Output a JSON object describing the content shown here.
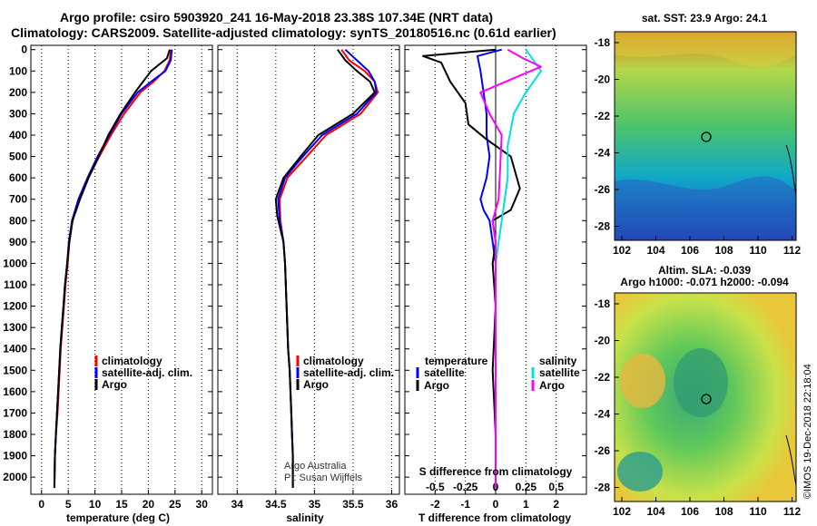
{
  "header": {
    "title_line1": "Argo profile: csiro 5903920_241 16-May-2018 23.38S 107.34E (NRT data)",
    "title_line2": "Climatology: CARS2009. Satellite-adjusted climatology: synTS_20180516.nc (0.61d earlier)"
  },
  "colors": {
    "climatology": "#ff0000",
    "satellite": "#0000ff",
    "argo": "#000000",
    "sat_salinity": "#00e0e0",
    "argo_salinity": "#ff00ff"
  },
  "chart_data": [
    {
      "type": "line",
      "id": "temperature",
      "xlabel": "temperature (deg C)",
      "xlim": [
        -2,
        32
      ],
      "ylim": [
        2080,
        -20
      ],
      "xticks": [
        0,
        5,
        10,
        15,
        20,
        25,
        30
      ],
      "xtick_labels": [
        "0",
        "5",
        "10",
        "15",
        "20",
        "25",
        "30"
      ],
      "yticks": [
        0,
        100,
        200,
        300,
        400,
        500,
        600,
        700,
        800,
        900,
        1000,
        1100,
        1200,
        1300,
        1400,
        1500,
        1600,
        1700,
        1800,
        1900,
        2000
      ],
      "ytick_labels": [
        "0",
        "100",
        "200",
        "300",
        "400",
        "500",
        "600",
        "700",
        "800",
        "900",
        "1000",
        "1100",
        "1200",
        "1300",
        "1400",
        "1500",
        "1600",
        "1700",
        "1800",
        "1900",
        "2000"
      ],
      "legend": [
        "climatology",
        "satellite-adj. clim.",
        "Argo"
      ],
      "series": [
        {
          "name": "climatology",
          "color": "#ff0000",
          "x": [
            24.2,
            24.0,
            23.0,
            21.0,
            18.5,
            15.5,
            13.0,
            10.8,
            8.8,
            7.0,
            5.8,
            5.2,
            4.9,
            4.5,
            4.2,
            3.9,
            3.6,
            3.4,
            3.2,
            3.0,
            2.7,
            2.5,
            2.4
          ],
          "depth": [
            0,
            50,
            100,
            150,
            200,
            300,
            400,
            500,
            600,
            700,
            800,
            900,
            1000,
            1100,
            1200,
            1300,
            1400,
            1500,
            1600,
            1700,
            1800,
            1900,
            2050
          ]
        },
        {
          "name": "satellite-adj. clim.",
          "color": "#0000ff",
          "x": [
            24.4,
            24.2,
            23.2,
            20.5,
            18.0,
            15.0,
            12.7,
            10.5,
            8.6,
            6.9,
            5.7,
            5.1,
            4.8,
            4.4,
            4.1,
            3.8,
            3.5,
            3.3,
            3.1,
            2.9,
            2.7,
            2.5,
            2.4
          ],
          "depth": [
            0,
            50,
            100,
            150,
            200,
            300,
            400,
            500,
            600,
            700,
            800,
            900,
            1000,
            1100,
            1200,
            1300,
            1400,
            1500,
            1600,
            1700,
            1800,
            1900,
            2050
          ]
        },
        {
          "name": "Argo",
          "color": "#000000",
          "x": [
            24.0,
            23.5,
            20.5,
            19.0,
            17.5,
            14.8,
            12.5,
            10.7,
            8.8,
            7.2,
            5.8,
            5.2,
            4.8,
            4.4,
            4.1,
            3.8,
            3.5,
            3.3,
            3.1,
            2.9,
            2.7,
            2.5,
            2.4
          ],
          "depth": [
            0,
            40,
            100,
            150,
            200,
            300,
            400,
            500,
            600,
            700,
            800,
            900,
            1000,
            1100,
            1200,
            1300,
            1400,
            1500,
            1600,
            1700,
            1800,
            1900,
            2050
          ]
        }
      ]
    },
    {
      "type": "line",
      "id": "salinity",
      "xlabel": "salinity",
      "xlim": [
        33.75,
        36.1
      ],
      "ylim": [
        2080,
        -20
      ],
      "xticks": [
        34,
        34.5,
        35,
        35.5,
        36
      ],
      "xtick_labels": [
        "34",
        "34.5",
        "35",
        "35.5",
        "36"
      ],
      "legend": [
        "climatology",
        "satellite-adj. clim.",
        "Argo"
      ],
      "annotation": [
        "Argo Australia",
        "PI: Susan Wijffels"
      ],
      "series": [
        {
          "name": "climatology",
          "color": "#ff0000",
          "x": [
            35.35,
            35.45,
            35.65,
            35.78,
            35.82,
            35.6,
            35.15,
            34.9,
            34.65,
            34.55,
            34.56,
            34.6,
            34.62,
            34.64,
            34.66,
            34.68,
            34.69,
            34.7,
            34.71,
            34.72,
            34.72
          ],
          "depth": [
            0,
            50,
            100,
            150,
            200,
            300,
            400,
            500,
            600,
            700,
            800,
            900,
            1000,
            1200,
            1400,
            1500,
            1600,
            1700,
            1800,
            1900,
            2050
          ]
        },
        {
          "name": "satellite-adj. clim.",
          "color": "#0000ff",
          "x": [
            35.4,
            35.55,
            35.7,
            35.78,
            35.8,
            35.55,
            35.1,
            34.85,
            34.62,
            34.53,
            34.55,
            34.6,
            34.62,
            34.64,
            34.66,
            34.68,
            34.69,
            34.7,
            34.71,
            34.72,
            34.72
          ],
          "depth": [
            0,
            50,
            100,
            150,
            200,
            300,
            400,
            500,
            600,
            700,
            800,
            900,
            1000,
            1200,
            1400,
            1500,
            1600,
            1700,
            1800,
            1900,
            2050
          ]
        },
        {
          "name": "Argo",
          "color": "#000000",
          "x": [
            35.3,
            35.4,
            35.55,
            35.72,
            35.78,
            35.5,
            35.05,
            34.82,
            34.6,
            34.5,
            34.52,
            34.6,
            34.62,
            34.64,
            34.66,
            34.68,
            34.69,
            34.7,
            34.71,
            34.72,
            34.72
          ],
          "depth": [
            0,
            50,
            100,
            150,
            200,
            300,
            400,
            500,
            600,
            700,
            780,
            900,
            1000,
            1200,
            1400,
            1500,
            1600,
            1700,
            1800,
            1900,
            2050
          ]
        }
      ]
    },
    {
      "type": "line",
      "id": "difference",
      "xlabel": "T difference from climatology",
      "xlabel_top": "S difference from climatology",
      "xlim": [
        -3,
        3
      ],
      "ylim": [
        2080,
        -20
      ],
      "xticks": [
        -2,
        -1,
        0,
        1,
        2
      ],
      "xtick_labels": [
        "-2",
        "-1",
        "0",
        "1",
        "2"
      ],
      "s_tick_labels": [
        "-0.5",
        "-0.25",
        "0",
        "0.25",
        "0.5"
      ],
      "legend_left_title": "temperature",
      "legend_right_title": "salinity",
      "legend_left": [
        "satellite",
        "Argo"
      ],
      "legend_right": [
        "satellite",
        "Argo"
      ],
      "series": [
        {
          "name": "T satellite",
          "color": "#0000ff",
          "x": [
            0.2,
            -0.6,
            -0.5,
            -0.4,
            -0.3,
            -0.3,
            -0.2,
            -0.3,
            -0.5,
            -0.4,
            -0.2,
            -0.1,
            0.0,
            0.0,
            0.0,
            0.0,
            0.0
          ],
          "depth": [
            0,
            30,
            100,
            200,
            300,
            400,
            500,
            600,
            700,
            750,
            800,
            900,
            1000,
            1200,
            1500,
            1800,
            2050
          ]
        },
        {
          "name": "T Argo",
          "color": "#000000",
          "x": [
            0.0,
            -2.4,
            -1.8,
            -1.5,
            -1.0,
            -0.9,
            -0.3,
            0.5,
            0.8,
            0.5,
            -0.1,
            0.0,
            -0.1,
            0.0,
            -0.1,
            0.0,
            0.0
          ],
          "depth": [
            0,
            30,
            60,
            150,
            250,
            350,
            420,
            500,
            650,
            750,
            800,
            900,
            1000,
            1200,
            1500,
            1800,
            2050
          ]
        },
        {
          "name": "S satellite",
          "color": "#00e0e0",
          "x": [
            1.0,
            1.2,
            1.5,
            1.0,
            0.6,
            0.4,
            0.4,
            0.3,
            0.2,
            0.1,
            0.0,
            0.0,
            0.0,
            0.0
          ],
          "depth": [
            0,
            40,
            100,
            200,
            300,
            450,
            600,
            700,
            800,
            900,
            1000,
            1200,
            1600,
            2050
          ]
        },
        {
          "name": "S Argo",
          "color": "#ff00ff",
          "x": [
            0.4,
            0.9,
            1.5,
            1.0,
            -0.5,
            -0.2,
            0.2,
            0.1,
            -0.1,
            0.0,
            0.0,
            0.0
          ],
          "depth": [
            0,
            40,
            80,
            110,
            200,
            300,
            400,
            700,
            800,
            900,
            1200,
            2050
          ]
        }
      ]
    }
  ],
  "maps": {
    "sst": {
      "title": "sat. SST: 23.9 Argo: 24.1"
    },
    "sla": {
      "title_line1": "Altim. SLA: -0.039",
      "title_line2": "Argo h1000: -0.071 h2000: -0.094"
    },
    "xtick_labels": [
      "102",
      "104",
      "106",
      "108",
      "110",
      "112"
    ],
    "ytick_labels": [
      "-18",
      "-20",
      "-22",
      "-24",
      "-26",
      "-28"
    ]
  },
  "credit": "©IMOS 19-Dec-2018 22:18:04"
}
